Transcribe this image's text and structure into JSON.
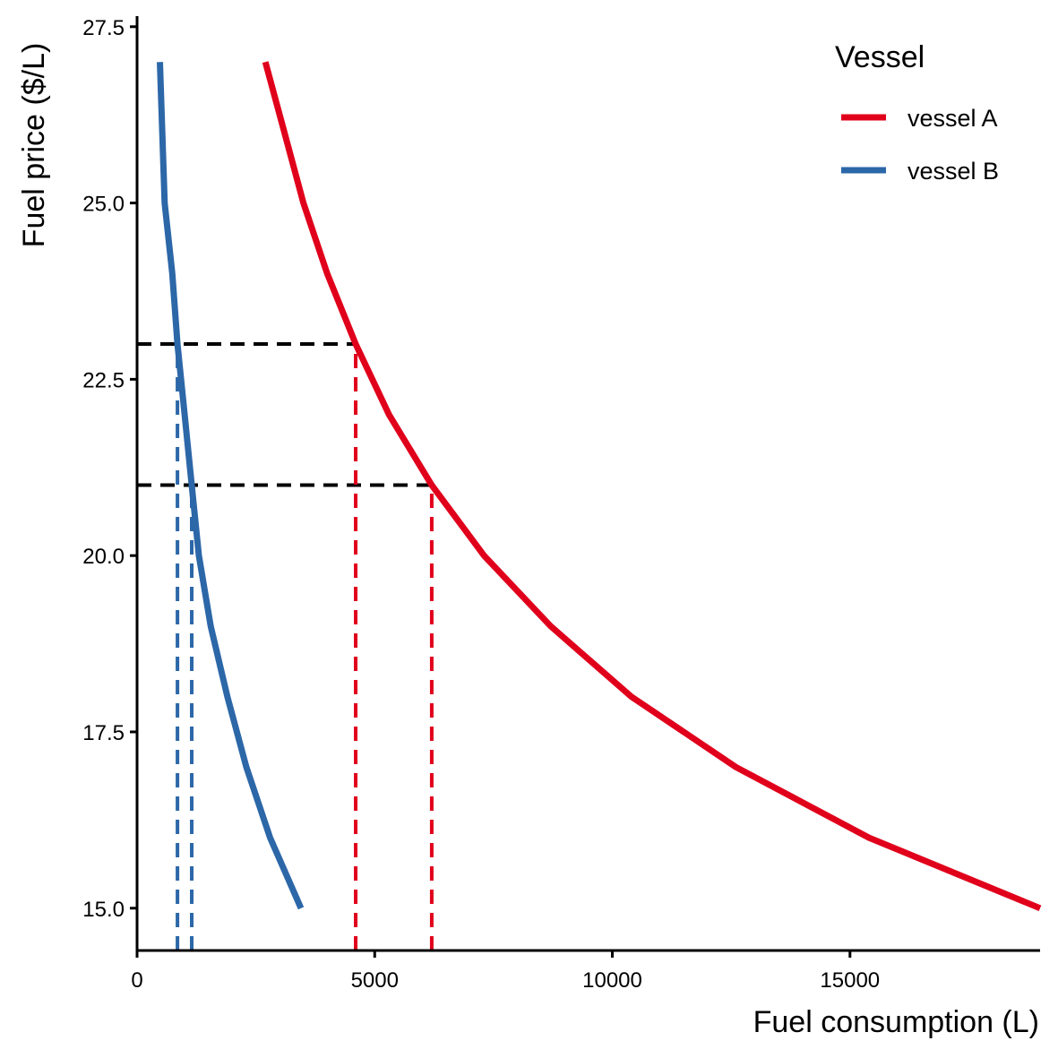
{
  "chart_data": {
    "type": "line",
    "title": "",
    "xlabel": "Fuel consumption (L)",
    "ylabel": "Fuel price ($/L)",
    "xlim": [
      0,
      19000
    ],
    "ylim": [
      14.4,
      27.65
    ],
    "xticks": [
      0,
      5000,
      10000,
      15000
    ],
    "xtick_labels": [
      "0",
      "5000",
      "10000",
      "15000"
    ],
    "yticks": [
      15.0,
      17.5,
      20.0,
      22.5,
      25.0,
      27.5
    ],
    "ytick_labels": [
      "15.0",
      "17.5",
      "20.0",
      "22.5",
      "25.0",
      "27.5"
    ],
    "grid": false,
    "legend": {
      "title": "Vessel",
      "position": "top-right"
    },
    "series": [
      {
        "name": "vessel A",
        "color": "#e0001b",
        "points": [
          [
            2700,
            27
          ],
          [
            3100,
            26
          ],
          [
            3500,
            25
          ],
          [
            4000,
            24
          ],
          [
            4600,
            23
          ],
          [
            5300,
            22
          ],
          [
            6200,
            21
          ],
          [
            7300,
            20
          ],
          [
            8700,
            19
          ],
          [
            10400,
            18
          ],
          [
            12600,
            17
          ],
          [
            15400,
            16
          ],
          [
            19000,
            15
          ]
        ]
      },
      {
        "name": "vessel B",
        "color": "#2c67a8",
        "points": [
          [
            480,
            27
          ],
          [
            580,
            25
          ],
          [
            740,
            24
          ],
          [
            850,
            23
          ],
          [
            1000,
            22
          ],
          [
            1150,
            21
          ],
          [
            1300,
            20
          ],
          [
            1550,
            19
          ],
          [
            1900,
            18
          ],
          [
            2300,
            17
          ],
          [
            2800,
            16
          ],
          [
            3450,
            15
          ]
        ]
      }
    ],
    "reference_lines": [
      {
        "color": "#000000",
        "x0": 0,
        "y0": 23,
        "x1": 4600,
        "y1": 23
      },
      {
        "color": "#000000",
        "x0": 0,
        "y0": 21,
        "x1": 6200,
        "y1": 21
      },
      {
        "color": "#e0001b",
        "x0": 4600,
        "y0": 14.4,
        "x1": 4600,
        "y1": 23
      },
      {
        "color": "#e0001b",
        "x0": 6200,
        "y0": 14.4,
        "x1": 6200,
        "y1": 21
      },
      {
        "color": "#2c67a8",
        "x0": 850,
        "y0": 14.4,
        "x1": 850,
        "y1": 23
      },
      {
        "color": "#2c67a8",
        "x0": 1150,
        "y0": 14.4,
        "x1": 1150,
        "y1": 21
      }
    ]
  }
}
